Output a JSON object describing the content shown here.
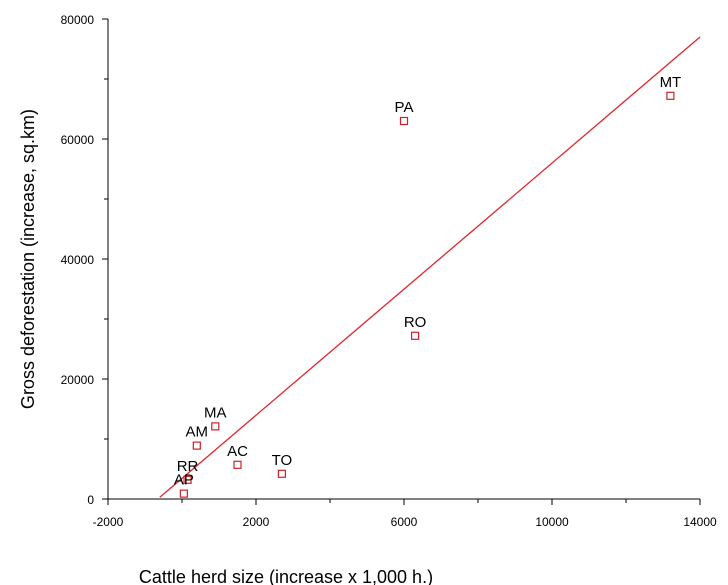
{
  "chart_data": {
    "type": "scatter",
    "title": "",
    "xlabel": "Cattle herd size (increase x 1,000 h.)",
    "ylabel": "Gross deforestation (increase, sq.km)",
    "xlim": [
      -2000,
      14000
    ],
    "ylim": [
      0,
      80000
    ],
    "x_ticks_major": [
      -2000,
      2000,
      6000,
      10000,
      14000
    ],
    "x_ticks_minor": [
      0,
      4000,
      8000,
      12000
    ],
    "y_ticks_major": [
      0,
      20000,
      40000,
      60000,
      80000
    ],
    "y_ticks_minor": [
      10000,
      30000,
      50000,
      70000
    ],
    "x_tick_labels": [
      "-2000",
      "2000",
      "6000",
      "10000",
      "14000"
    ],
    "y_tick_labels": [
      "0",
      "20000",
      "40000",
      "60000",
      "80000"
    ],
    "grid": false,
    "marker_color": "#d0202a",
    "fit_line_color": "#e0262e",
    "points": [
      {
        "label": "MT",
        "x": 13200,
        "y": 67200
      },
      {
        "label": "PA",
        "x": 6000,
        "y": 63000
      },
      {
        "label": "RO",
        "x": 6300,
        "y": 27200
      },
      {
        "label": "MA",
        "x": 900,
        "y": 12100
      },
      {
        "label": "AM",
        "x": 400,
        "y": 8900
      },
      {
        "label": "AC",
        "x": 1500,
        "y": 5700
      },
      {
        "label": "TO",
        "x": 2700,
        "y": 4200
      },
      {
        "label": "RR",
        "x": 150,
        "y": 3200
      },
      {
        "label": "AP",
        "x": 50,
        "y": 900
      }
    ],
    "fit_line": {
      "x": [
        -600,
        14000
      ],
      "y": [
        300,
        77000
      ]
    }
  }
}
